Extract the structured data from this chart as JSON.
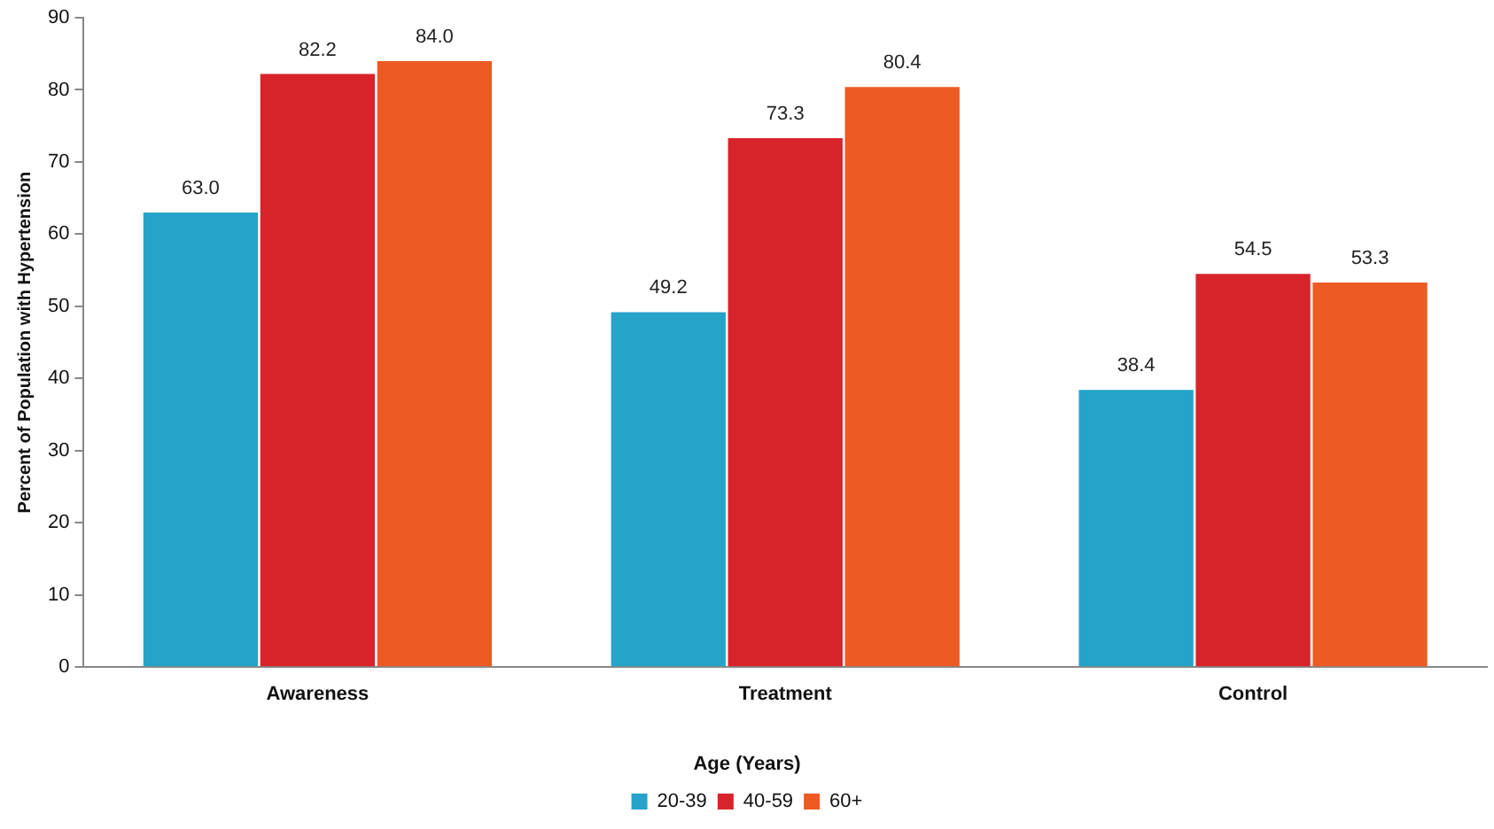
{
  "chart_data": {
    "type": "bar",
    "ylabel": "Percent of Population with Hypertension",
    "xlabel": "Age (Years)",
    "categories": [
      "Awareness",
      "Treatment",
      "Control"
    ],
    "series": [
      {
        "name": "20-39",
        "color": "#25a3c8",
        "values": [
          63.0,
          49.2,
          38.4
        ],
        "value_labels": [
          "63.0",
          "49.2",
          "38.4"
        ]
      },
      {
        "name": "40-59",
        "color": "#d9232b",
        "values": [
          82.2,
          73.3,
          54.5
        ],
        "value_labels": [
          "82.2",
          "73.3",
          "54.5"
        ]
      },
      {
        "name": "60+",
        "color": "#ee5a24",
        "values": [
          84.0,
          80.4,
          53.3
        ],
        "value_labels": [
          "84.0",
          "80.4",
          "53.3"
        ]
      }
    ],
    "ylim": [
      0,
      90
    ],
    "yticks": [
      0,
      10,
      20,
      30,
      40,
      50,
      60,
      70,
      80,
      90
    ],
    "grid": false,
    "legend": "bottom"
  }
}
